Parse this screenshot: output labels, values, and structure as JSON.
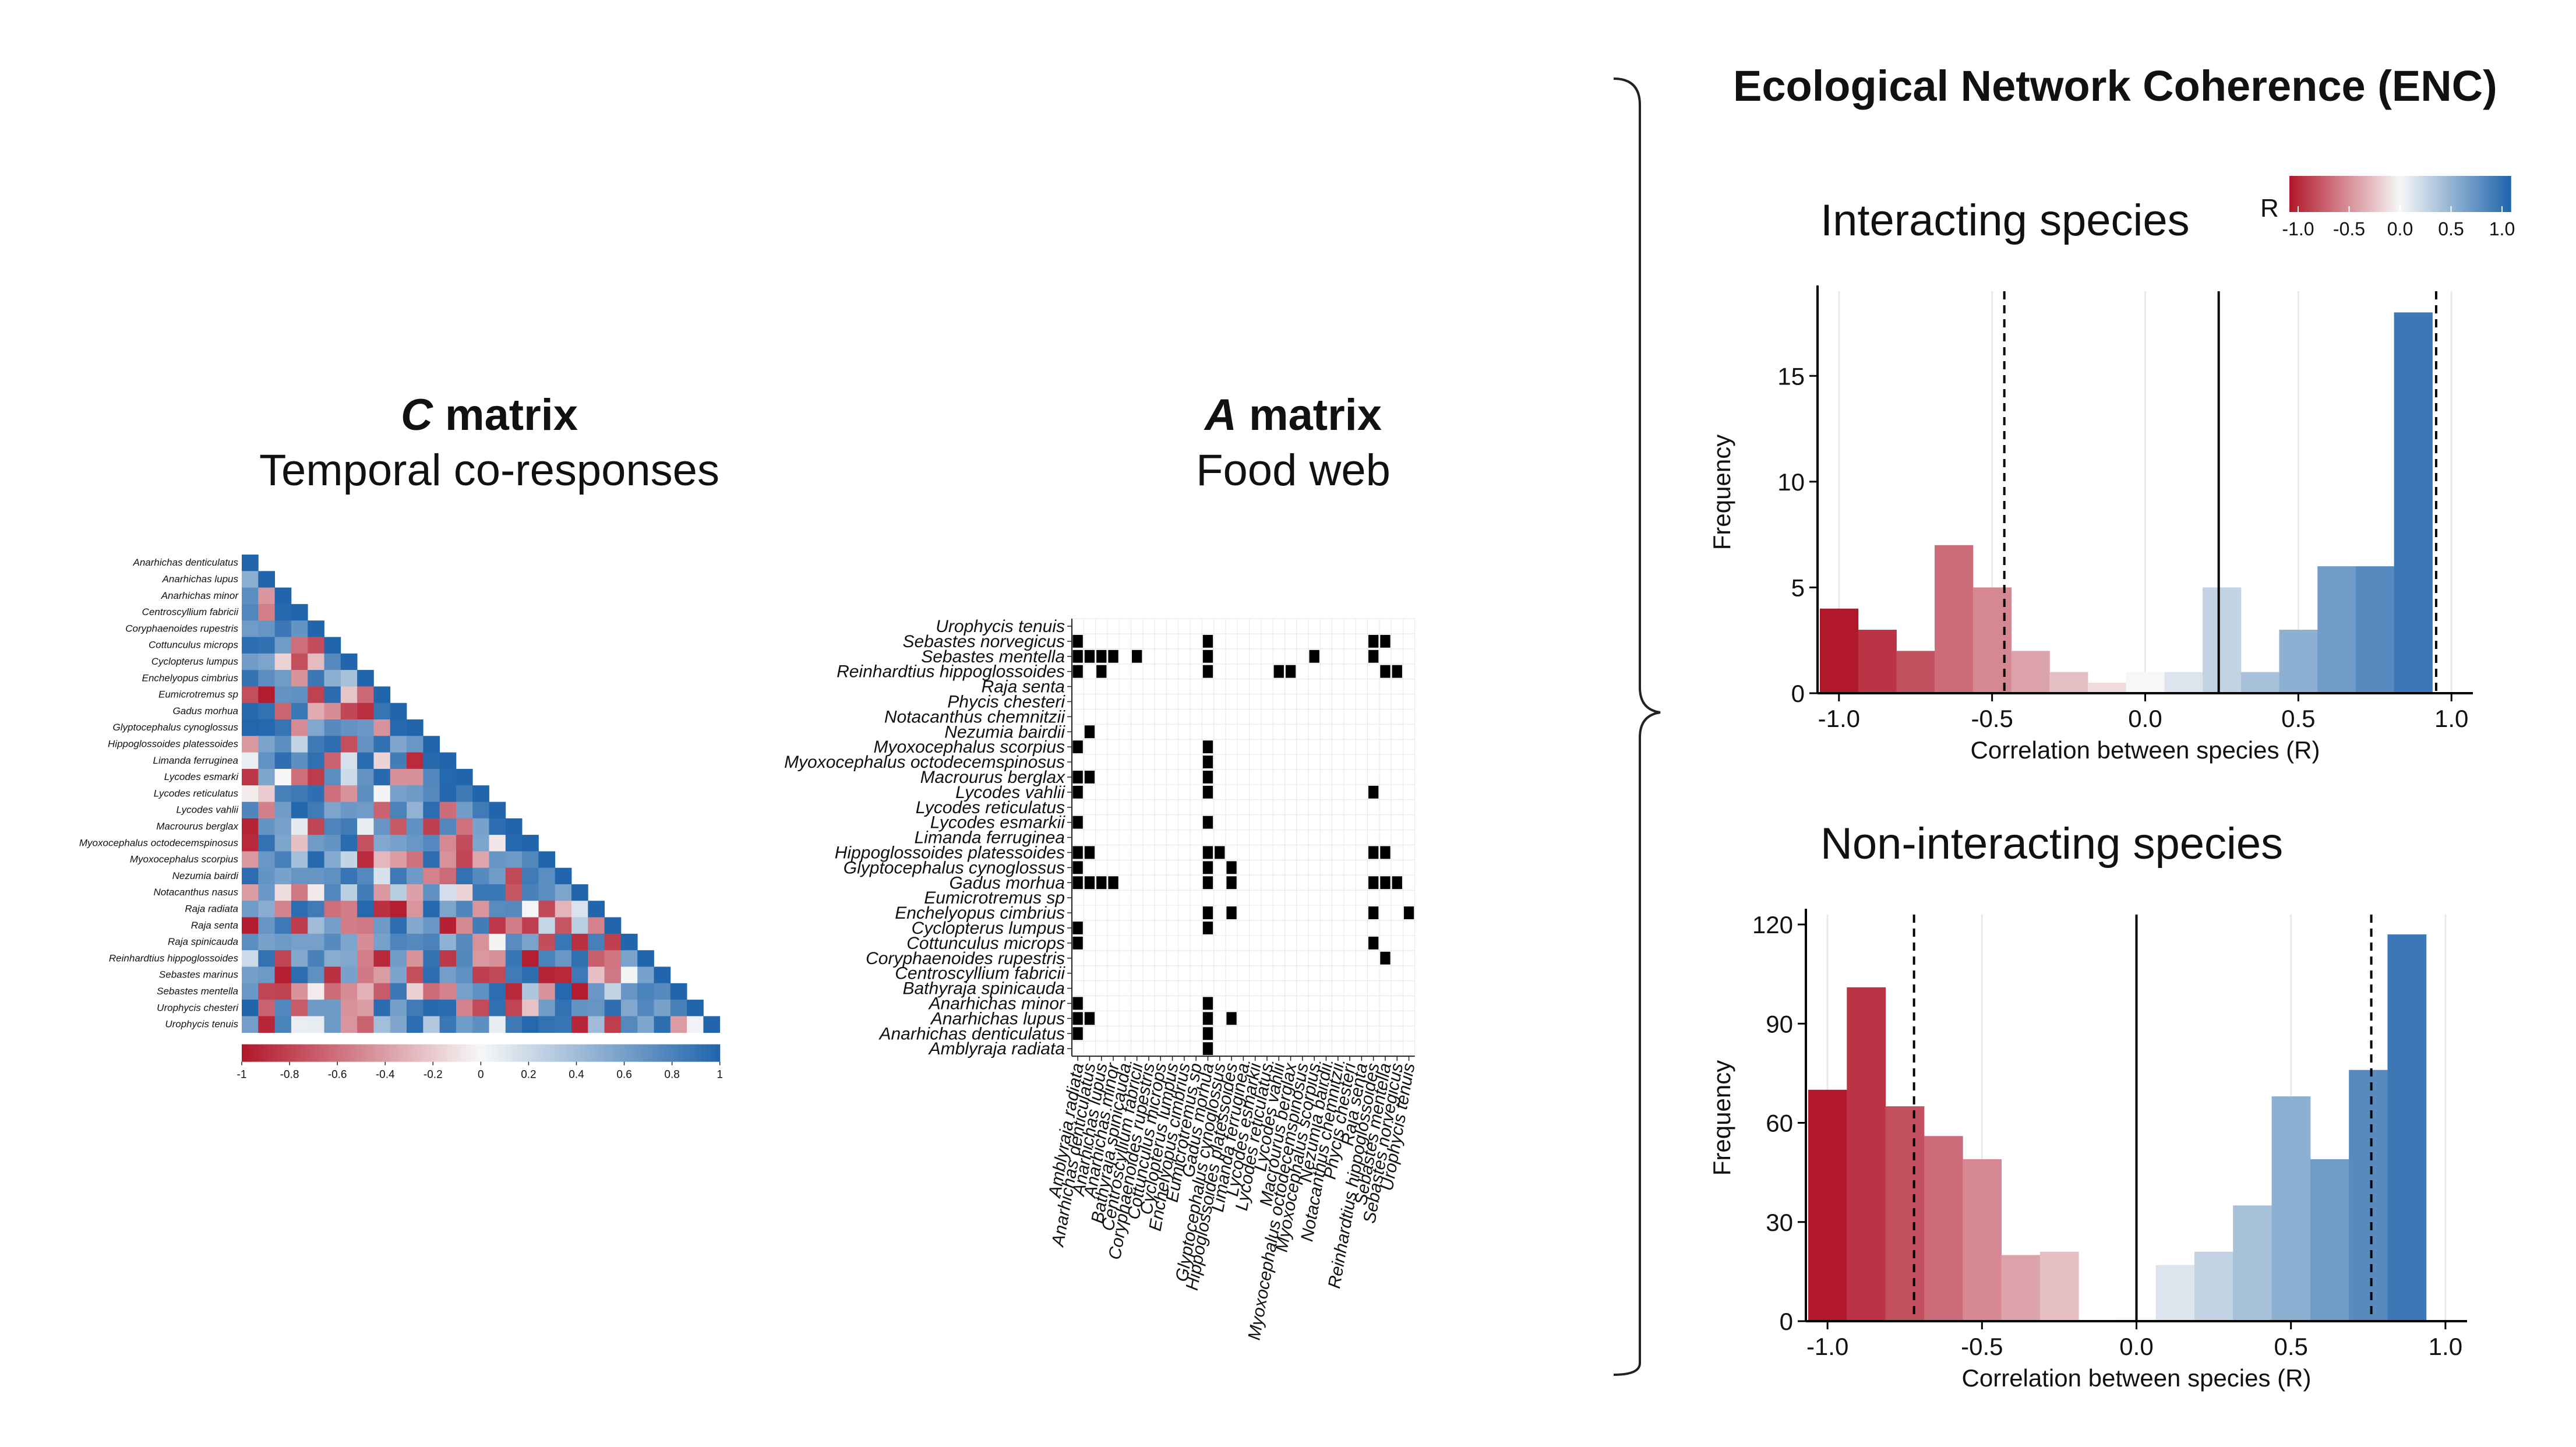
{
  "enc_title": "Ecological Network Coherence (ENC)",
  "c_matrix": {
    "title_italic": "C",
    "title_rest": " matrix",
    "subtitle": "Temporal co-responses",
    "species": [
      "Anarhichas denticulatus",
      "Anarhichas lupus",
      "Anarhichas minor",
      "Centroscyllium fabricii",
      "Coryphaenoides rupestris",
      "Cottunculus microps",
      "Cyclopterus lumpus",
      "Enchelyopus cimbrius",
      "Eumicrotremus sp",
      "Gadus morhua",
      "Glyptocephalus cynoglossus",
      "Hippoglossoides platessoides",
      "Limanda ferruginea",
      "Lycodes esmarki",
      "Lycodes reticulatus",
      "Lycodes vahlii",
      "Macrourus berglax",
      "Myoxocephalus octodecemspinosus",
      "Myoxocephalus scorpius",
      "Nezumia bairdi",
      "Notacanthus nasus",
      "Raja radiata",
      "Raja senta",
      "Raja spinicauda",
      "Reinhardtius hippoglossoides",
      "Sebastes marinus",
      "Sebastes mentella",
      "Urophycis chesteri",
      "Urophycis tenuis"
    ],
    "colorbar_ticks": [
      "-1",
      "-0.8",
      "-0.6",
      "-0.4",
      "-0.2",
      "0",
      "0.2",
      "0.4",
      "0.6",
      "0.8",
      "1"
    ]
  },
  "a_matrix": {
    "title_italic": "A",
    "title_rest": " matrix",
    "subtitle": "Food web",
    "rows": [
      "Urophycis tenuis",
      "Sebastes norvegicus",
      "Sebastes mentella",
      "Reinhardtius hippoglossoides",
      "Raja senta",
      "Phycis chesteri",
      "Notacanthus chemnitzii",
      "Nezumia bairdii",
      "Myoxocephalus scorpius",
      "Myoxocephalus octodecemspinosus",
      "Macrourus berglax",
      "Lycodes vahlii",
      "Lycodes reticulatus",
      "Lycodes esmarkii",
      "Limanda ferruginea",
      "Hippoglossoides platessoides",
      "Glyptocephalus cynoglossus",
      "Gadus morhua",
      "Eumicrotremus sp",
      "Enchelyopus cimbrius",
      "Cyclopterus lumpus",
      "Cottunculus microps",
      "Coryphaenoides rupestris",
      "Centroscyllium fabricii",
      "Bathyraja spinicauda",
      "Anarhichas minor",
      "Anarhichas lupus",
      "Anarhichas denticulatus",
      "Amblyraja radiata"
    ],
    "cols": [
      "Amblyraja radiata",
      "Anarhichas denticulatus",
      "Anarhichas lupus",
      "Anarhichas minor",
      "Bathyraja spinicauda",
      "Centroscyllium fabricii",
      "Coryphaenoides rupestris",
      "Cottunculus microps",
      "Cyclopterus lumpus",
      "Enchelyopus cimbrius",
      "Eumicrotremus sp",
      "Gadus morhua",
      "Glyptocephalus cynoglossus",
      "Hippoglossoides platessoides",
      "Limanda ferruginea",
      "Lycodes esmarkii",
      "Lycodes reticulatus",
      "Lycodes vahlii",
      "Macrourus berglax",
      "Myoxocephalus octodecemspinosus",
      "Myoxocephalus scorpius",
      "Nezumia bairdii",
      "Notacanthus chemnitzii",
      "Phycis chesteri",
      "Raja senta",
      "Reinhardtius hippoglossoides",
      "Sebastes mentella",
      "Sebastes norvegicus",
      "Urophycis tenuis"
    ],
    "links": [
      [
        1,
        0
      ],
      [
        1,
        11
      ],
      [
        1,
        25
      ],
      [
        1,
        26
      ],
      [
        2,
        0
      ],
      [
        2,
        1
      ],
      [
        2,
        2
      ],
      [
        2,
        3
      ],
      [
        2,
        5
      ],
      [
        2,
        11
      ],
      [
        2,
        20
      ],
      [
        2,
        25
      ],
      [
        3,
        0
      ],
      [
        3,
        2
      ],
      [
        3,
        11
      ],
      [
        3,
        17
      ],
      [
        3,
        18
      ],
      [
        3,
        26
      ],
      [
        3,
        27
      ],
      [
        7,
        1
      ],
      [
        8,
        0
      ],
      [
        8,
        11
      ],
      [
        9,
        11
      ],
      [
        10,
        0
      ],
      [
        10,
        1
      ],
      [
        10,
        11
      ],
      [
        11,
        0
      ],
      [
        11,
        11
      ],
      [
        11,
        25
      ],
      [
        13,
        0
      ],
      [
        13,
        11
      ],
      [
        15,
        0
      ],
      [
        15,
        1
      ],
      [
        15,
        11
      ],
      [
        15,
        12
      ],
      [
        15,
        25
      ],
      [
        15,
        26
      ],
      [
        16,
        0
      ],
      [
        16,
        11
      ],
      [
        16,
        13
      ],
      [
        17,
        0
      ],
      [
        17,
        1
      ],
      [
        17,
        2
      ],
      [
        17,
        3
      ],
      [
        17,
        11
      ],
      [
        17,
        13
      ],
      [
        17,
        25
      ],
      [
        17,
        26
      ],
      [
        17,
        27
      ],
      [
        19,
        11
      ],
      [
        19,
        13
      ],
      [
        19,
        25
      ],
      [
        19,
        28
      ],
      [
        20,
        0
      ],
      [
        20,
        11
      ],
      [
        21,
        0
      ],
      [
        21,
        25
      ],
      [
        22,
        26
      ],
      [
        25,
        0
      ],
      [
        25,
        11
      ],
      [
        26,
        0
      ],
      [
        26,
        1
      ],
      [
        26,
        11
      ],
      [
        26,
        13
      ],
      [
        27,
        0
      ],
      [
        27,
        11
      ],
      [
        28,
        11
      ]
    ]
  },
  "colorbar": {
    "label": "R",
    "ticks": [
      "-1.0",
      "-0.5",
      "0.0",
      "0.5",
      "1.0"
    ]
  },
  "colors": {
    "neg": "#b2182b",
    "neutral": "#f7f7f7",
    "pos": "#2166ac"
  },
  "chart_data": [
    {
      "type": "bar",
      "title": "Interacting species",
      "xlabel": "Correlation between species (R)",
      "ylabel": "Frequency",
      "x": [
        -1.0,
        -0.875,
        -0.75,
        -0.625,
        -0.5,
        -0.375,
        -0.25,
        -0.125,
        0.0,
        0.125,
        0.25,
        0.375,
        0.5,
        0.625,
        0.75,
        0.875,
        1.0
      ],
      "values": [
        4,
        3,
        2,
        7,
        5,
        2,
        1,
        0.5,
        1,
        1,
        5,
        1,
        3,
        6,
        6,
        18,
        0
      ],
      "xlim": [
        -1.07,
        1.07
      ],
      "ylim": [
        0,
        19
      ],
      "xticks": [
        "-1.0",
        "-0.5",
        "0.0",
        "0.5",
        "1.0"
      ],
      "yticks": [
        0,
        5,
        10,
        15
      ],
      "solid_vline": 0.24,
      "dashed_vlines": [
        -0.46,
        0.95
      ]
    },
    {
      "type": "bar",
      "title": "Non-interacting species",
      "xlabel": "Correlation between species (R)",
      "ylabel": "Frequency",
      "x": [
        -1.0,
        -0.875,
        -0.75,
        -0.625,
        -0.5,
        -0.375,
        -0.25,
        -0.125,
        0.0,
        0.125,
        0.25,
        0.375,
        0.5,
        0.625,
        0.75,
        0.875,
        1.0
      ],
      "values": [
        70,
        101,
        65,
        56,
        49,
        20,
        21,
        0,
        1,
        17,
        21,
        35,
        68,
        49,
        76,
        117,
        0
      ],
      "xlim": [
        -1.07,
        1.07
      ],
      "ylim": [
        0,
        123
      ],
      "xticks": [
        "-1.0",
        "-0.5",
        "0.0",
        "0.5",
        "1.0"
      ],
      "yticks": [
        0,
        30,
        60,
        90,
        120
      ],
      "solid_vline": 0.0,
      "dashed_vlines": [
        -0.72,
        0.76
      ]
    }
  ]
}
